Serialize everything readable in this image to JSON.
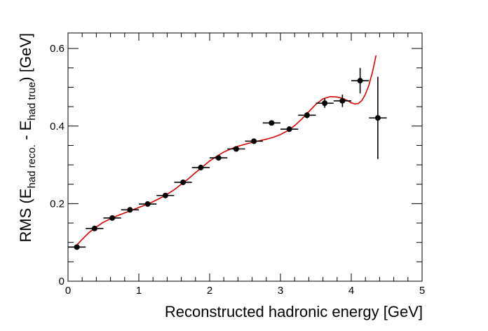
{
  "chart_data": {
    "type": "scatter",
    "xlabel": "Reconstructed hadronic energy [GeV]",
    "ylabel": {
      "prefix": "RMS (E",
      "sub1": "had reco.",
      "middle": " - E",
      "sub2": "had true",
      "suffix": ") [GeV]"
    },
    "xlim": [
      0,
      5
    ],
    "ylim": [
      0,
      0.64
    ],
    "x_ticks": [
      0,
      1,
      2,
      3,
      4,
      5
    ],
    "x_tick_labels": [
      "0",
      "1",
      "2",
      "3",
      "4",
      "5"
    ],
    "y_ticks": [
      0,
      0.2,
      0.4,
      0.6
    ],
    "y_tick_labels": [
      "0",
      "0.2",
      "0.4",
      "0.6"
    ],
    "grid": false,
    "points": [
      {
        "x": 0.125,
        "y": 0.088,
        "xerr": 0.125,
        "yerr": 0.002
      },
      {
        "x": 0.375,
        "y": 0.136,
        "xerr": 0.125,
        "yerr": 0.002
      },
      {
        "x": 0.625,
        "y": 0.163,
        "xerr": 0.125,
        "yerr": 0.002
      },
      {
        "x": 0.875,
        "y": 0.184,
        "xerr": 0.125,
        "yerr": 0.002
      },
      {
        "x": 1.125,
        "y": 0.199,
        "xerr": 0.125,
        "yerr": 0.003
      },
      {
        "x": 1.375,
        "y": 0.221,
        "xerr": 0.125,
        "yerr": 0.003
      },
      {
        "x": 1.625,
        "y": 0.255,
        "xerr": 0.125,
        "yerr": 0.003
      },
      {
        "x": 1.875,
        "y": 0.293,
        "xerr": 0.125,
        "yerr": 0.003
      },
      {
        "x": 2.125,
        "y": 0.318,
        "xerr": 0.125,
        "yerr": 0.004
      },
      {
        "x": 2.375,
        "y": 0.341,
        "xerr": 0.125,
        "yerr": 0.004
      },
      {
        "x": 2.625,
        "y": 0.361,
        "xerr": 0.125,
        "yerr": 0.005
      },
      {
        "x": 2.875,
        "y": 0.408,
        "xerr": 0.125,
        "yerr": 0.006
      },
      {
        "x": 3.125,
        "y": 0.392,
        "xerr": 0.125,
        "yerr": 0.007
      },
      {
        "x": 3.375,
        "y": 0.428,
        "xerr": 0.125,
        "yerr": 0.008
      },
      {
        "x": 3.625,
        "y": 0.459,
        "xerr": 0.125,
        "yerr": 0.012
      },
      {
        "x": 3.875,
        "y": 0.465,
        "xerr": 0.125,
        "yerr": 0.016
      },
      {
        "x": 4.125,
        "y": 0.517,
        "xerr": 0.125,
        "yerr": 0.033
      },
      {
        "x": 4.375,
        "y": 0.421,
        "xerr": 0.125,
        "yerr": 0.106
      }
    ],
    "fit": {
      "x": [
        0.1,
        0.2,
        0.3,
        0.4,
        0.5,
        0.6,
        0.7,
        0.8,
        0.9,
        1.0,
        1.1,
        1.2,
        1.3,
        1.4,
        1.5,
        1.6,
        1.7,
        1.8,
        1.9,
        2.0,
        2.1,
        2.2,
        2.3,
        2.4,
        2.5,
        2.6,
        2.7,
        2.8,
        2.9,
        3.0,
        3.1,
        3.2,
        3.3,
        3.4,
        3.5,
        3.6,
        3.7,
        3.8,
        3.9,
        4.0,
        4.05,
        4.1,
        4.15,
        4.2,
        4.25,
        4.3,
        4.35
      ],
      "y": [
        0.088,
        0.108,
        0.126,
        0.14,
        0.152,
        0.161,
        0.169,
        0.176,
        0.183,
        0.19,
        0.197,
        0.205,
        0.214,
        0.224,
        0.236,
        0.25,
        0.264,
        0.28,
        0.295,
        0.31,
        0.322,
        0.333,
        0.341,
        0.348,
        0.353,
        0.358,
        0.362,
        0.366,
        0.371,
        0.378,
        0.388,
        0.401,
        0.418,
        0.437,
        0.456,
        0.47,
        0.476,
        0.475,
        0.47,
        0.46,
        0.457,
        0.458,
        0.466,
        0.482,
        0.506,
        0.54,
        0.582
      ],
      "color": "#dd0000"
    },
    "marker_color": "#000000"
  }
}
